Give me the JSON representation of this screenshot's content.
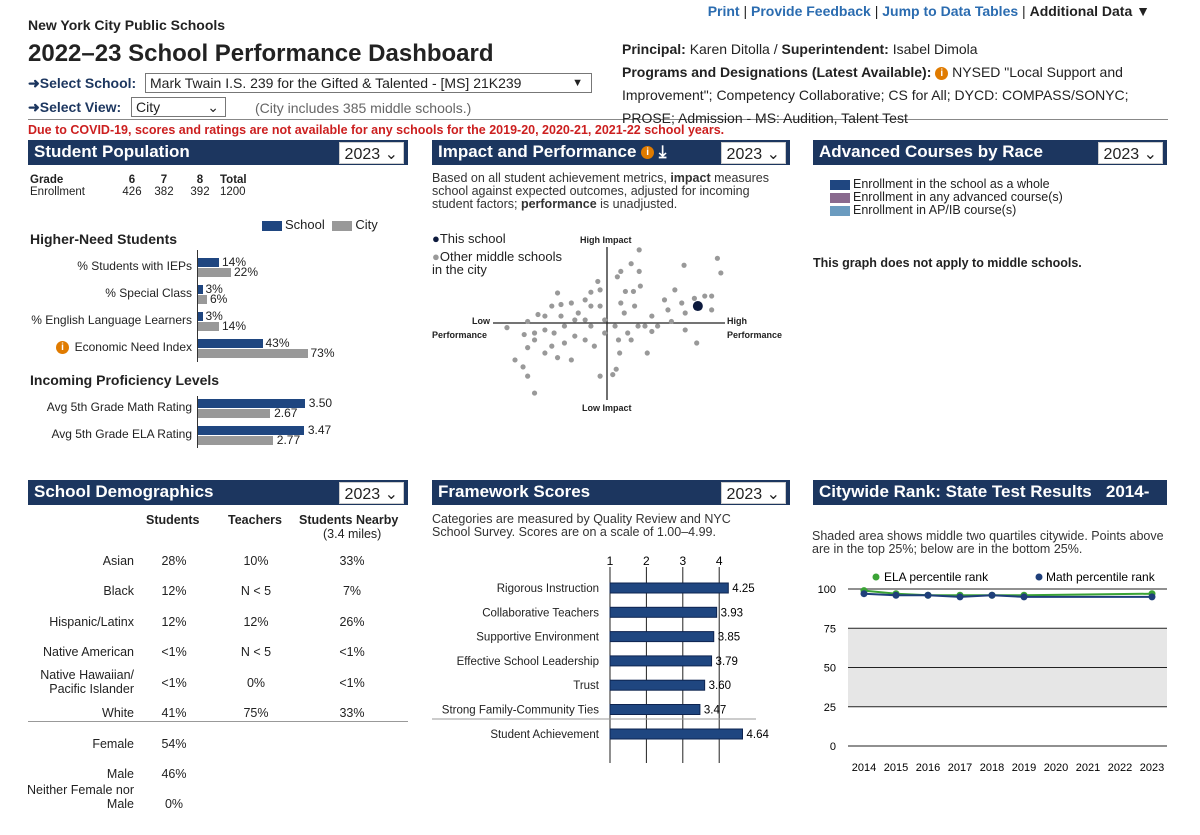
{
  "header": {
    "org": "New York City Public Schools",
    "title": "2022–23 School Performance Dashboard",
    "select_school_label": "➜Select School:",
    "school": "Mark Twain I.S. 239 for the Gifted & Talented - [MS] 21K239",
    "select_view_label": "➜Select View:",
    "view": "City",
    "view_note": "(City includes 385 middle schools.)",
    "covid_notice": "Due to COVID-19, scores and ratings are not available for any schools for the 2019-20, 2020-21, 2021-22 school years."
  },
  "toplinks": {
    "print": "Print",
    "feedback": "Provide Feedback",
    "jump": "Jump to Data Tables",
    "additional": "Additional Data ▼",
    "sep": "|"
  },
  "info": {
    "principal_label": "Principal:",
    "principal": "Karen Ditolla /",
    "superintendent_label": "Superintendent:",
    "superintendent": "Isabel Dimola",
    "programs_label": "Programs and Designations (Latest Available):",
    "programs": "NYSED \"Local Support and Improvement\"; Competency Collaborative; CS for All; DYCD: COMPASS/SONYC; PROSE; Admission - MS: Audition, Talent Test"
  },
  "colors": {
    "navy": "#1c365f",
    "school": "#1f4680",
    "city": "#999999",
    "covid": "#cc1f1f",
    "info": "#e07b00",
    "ela": "#3aa335",
    "math": "#1f3f7a"
  },
  "population": {
    "title": "Student Population",
    "year": "2023",
    "grade_header": [
      "Grade",
      "6",
      "7",
      "8",
      "Total"
    ],
    "enrollment": [
      "Enrollment",
      "426",
      "382",
      "392",
      "1200"
    ],
    "legend": {
      "school": "School",
      "city": "City"
    },
    "higher_need_title": "Higher-Need Students",
    "higher_need": [
      {
        "label": "% Students with IEPs",
        "school": 14,
        "city": 22,
        "school_text": "14%",
        "city_text": "22%"
      },
      {
        "label": "% Special Class",
        "school": 3,
        "city": 6,
        "school_text": "3%",
        "city_text": "6%"
      },
      {
        "label": "% English Language Learners",
        "school": 3,
        "city": 14,
        "school_text": "3%",
        "city_text": "14%"
      },
      {
        "label": "Economic Need Index",
        "school": 43,
        "city": 73,
        "school_text": "43%",
        "city_text": "73%"
      }
    ],
    "proficiency_title": "Incoming Proficiency Levels",
    "proficiency": [
      {
        "label": "Avg 5th Grade Math Rating",
        "school": 3.5,
        "city": 2.67,
        "school_text": "3.50",
        "city_text": "2.67"
      },
      {
        "label": "Avg 5th Grade ELA Rating",
        "school": 3.47,
        "city": 2.77,
        "school_text": "3.47",
        "city_text": "2.77"
      }
    ]
  },
  "impact": {
    "title": "Impact and Performance",
    "year": "2023",
    "desc_1": "Based on all student achievement metrics, ",
    "desc_b1": "impact",
    "desc_2": " measures school against expected outcomes, adjusted for incoming student factors; ",
    "desc_b2": "performance",
    "desc_3": " is unadjusted.",
    "legend_school": "This school",
    "legend_others": "Other middle schools in the city",
    "high_impact": "High Impact",
    "low_impact": "Low Impact",
    "low_perf_1": "Low",
    "low_perf_2": "Performance",
    "high_perf_1": "High",
    "high_perf_2": "Performance"
  },
  "advanced": {
    "title": "Advanced Courses by Race",
    "year": "2023",
    "legend": [
      {
        "label": "Enrollment in the school as a whole",
        "color": "#1f4680"
      },
      {
        "label": "Enrollment in any advanced course(s)",
        "color": "#8a6a8e"
      },
      {
        "label": "Enrollment in AP/IB course(s)",
        "color": "#6b9bbf"
      }
    ],
    "note": "This graph does not apply to middle schools."
  },
  "demographics": {
    "title": "School Demographics",
    "year": "2023",
    "headers": [
      "Students",
      "Teachers",
      "Students Nearby"
    ],
    "nearby_sub": "(3.4 miles)",
    "rows": [
      {
        "label": "Asian",
        "s": "28%",
        "t": "10%",
        "n": "33%"
      },
      {
        "label": "Black",
        "s": "12%",
        "t": "N < 5",
        "n": "7%"
      },
      {
        "label": "Hispanic/Latinx",
        "s": "12%",
        "t": "12%",
        "n": "26%"
      },
      {
        "label": "Native American",
        "s": "<1%",
        "t": "N < 5",
        "n": "<1%"
      },
      {
        "label": "Native Hawaiian/ Pacific Islander",
        "s": "<1%",
        "t": "0%",
        "n": "<1%"
      },
      {
        "label": "White",
        "s": "41%",
        "t": "75%",
        "n": "33%"
      }
    ],
    "gender": [
      {
        "label": "Female",
        "s": "54%"
      },
      {
        "label": "Male",
        "s": "46%"
      },
      {
        "label": "Neither Female nor Male",
        "s": "0%"
      }
    ]
  },
  "framework": {
    "title": "Framework Scores",
    "year": "2023",
    "desc": "Categories are measured by Quality Review and NYC School Survey. Scores are on a scale of 1.00–4.99."
  },
  "rank": {
    "title": "Citywide Rank: State Test Results",
    "title_suffix": "2014-",
    "desc": "Shaded area shows middle two quartiles citywide. Points above are in the top 25%; below are in the bottom 25%."
  },
  "chart_data": [
    {
      "type": "scatter",
      "name": "impact-performance",
      "xlabel": "Performance",
      "ylabel": "Impact",
      "xlim": [
        -1,
        1
      ],
      "ylim": [
        -1,
        1
      ],
      "this_school": [
        0.79,
        0.22
      ],
      "others": [
        [
          0.28,
          0.95
        ],
        [
          0.21,
          0.77
        ],
        [
          0.12,
          0.67
        ],
        [
          0.09,
          0.6
        ],
        [
          0.28,
          0.67
        ],
        [
          0.29,
          0.48
        ],
        [
          0.23,
          0.41
        ],
        [
          0.16,
          0.41
        ],
        [
          -0.08,
          0.54
        ],
        [
          -0.06,
          0.43
        ],
        [
          -0.14,
          0.4
        ],
        [
          -0.43,
          0.39
        ],
        [
          -0.31,
          0.26
        ],
        [
          -0.4,
          0.24
        ],
        [
          -0.48,
          0.22
        ],
        [
          -0.6,
          0.11
        ],
        [
          -0.54,
          0.09
        ],
        [
          -0.69,
          0.02
        ],
        [
          -0.87,
          -0.06
        ],
        [
          -0.72,
          -0.15
        ],
        [
          -0.63,
          -0.22
        ],
        [
          -0.69,
          -0.32
        ],
        [
          -0.54,
          -0.39
        ],
        [
          -0.43,
          -0.45
        ],
        [
          -0.31,
          -0.48
        ],
        [
          -0.8,
          -0.48
        ],
        [
          -0.73,
          -0.57
        ],
        [
          -0.69,
          -0.69
        ],
        [
          -0.63,
          -0.91
        ],
        [
          -0.06,
          -0.69
        ],
        [
          0.08,
          -0.6
        ],
        [
          0.05,
          -0.67
        ],
        [
          0.11,
          -0.39
        ],
        [
          0.35,
          -0.39
        ],
        [
          0.21,
          -0.22
        ],
        [
          0.39,
          -0.11
        ],
        [
          0.44,
          -0.04
        ],
        [
          0.56,
          0.02
        ],
        [
          0.68,
          -0.09
        ],
        [
          0.78,
          -0.26
        ],
        [
          0.68,
          0.13
        ],
        [
          0.76,
          0.32
        ],
        [
          0.85,
          0.35
        ],
        [
          0.91,
          0.35
        ],
        [
          0.91,
          0.17
        ],
        [
          0.99,
          0.65
        ],
        [
          0.96,
          0.84
        ],
        [
          0.67,
          0.75
        ],
        [
          0.59,
          0.43
        ],
        [
          0.5,
          0.3
        ],
        [
          0.53,
          0.17
        ],
        [
          0.65,
          0.26
        ],
        [
          -0.25,
          0.13
        ],
        [
          -0.19,
          0.04
        ],
        [
          -0.14,
          -0.04
        ],
        [
          -0.37,
          -0.04
        ],
        [
          -0.28,
          -0.17
        ],
        [
          -0.19,
          -0.22
        ],
        [
          -0.11,
          -0.3
        ],
        [
          -0.46,
          -0.13
        ],
        [
          -0.54,
          -0.09
        ],
        [
          -0.37,
          -0.26
        ],
        [
          -0.02,
          -0.13
        ],
        [
          0.07,
          -0.04
        ],
        [
          0.15,
          0.13
        ],
        [
          0.24,
          0.22
        ],
        [
          0.39,
          0.09
        ],
        [
          0.33,
          -0.04
        ],
        [
          0.1,
          -0.22
        ],
        [
          -0.19,
          0.3
        ],
        [
          -0.06,
          0.22
        ],
        [
          -0.14,
          0.22
        ],
        [
          -0.48,
          -0.3
        ],
        [
          -0.63,
          -0.13
        ],
        [
          -0.28,
          0.04
        ],
        [
          -0.4,
          0.09
        ],
        [
          -0.02,
          0.04
        ],
        [
          0.12,
          0.26
        ],
        [
          0.18,
          -0.13
        ],
        [
          0.27,
          -0.04
        ]
      ]
    },
    {
      "type": "bar",
      "name": "framework-scores",
      "orientation": "horizontal",
      "xlim": [
        1,
        4.99
      ],
      "ticks": [
        "1",
        "2",
        "3",
        "4"
      ],
      "categories": [
        "Rigorous Instruction",
        "Collaborative Teachers",
        "Supportive Environment",
        "Effective School Leadership",
        "Trust",
        "Strong Family-Community Ties",
        "Student Achievement"
      ],
      "values": [
        4.25,
        3.93,
        3.85,
        3.79,
        3.6,
        3.47,
        4.64
      ],
      "labels": [
        "4.25",
        "3.93",
        "3.85",
        "3.79",
        "3.60",
        "3.47",
        "4.64"
      ]
    },
    {
      "type": "line",
      "name": "citywide-rank",
      "ylim": [
        0,
        100
      ],
      "yticks": [
        "100",
        "75",
        "50",
        "25",
        "0"
      ],
      "shaded_band": [
        25,
        75
      ],
      "x": [
        "2014",
        "2015",
        "2016",
        "2017",
        "2018",
        "2019",
        "2020",
        "2021",
        "2022",
        "2023"
      ],
      "series": [
        {
          "name": "ELA percentile rank",
          "values": [
            99,
            97,
            96,
            96,
            96,
            96,
            null,
            null,
            null,
            97
          ]
        },
        {
          "name": "Math percentile rank",
          "values": [
            97,
            96,
            96,
            95,
            96,
            95,
            null,
            null,
            null,
            95
          ]
        }
      ]
    }
  ]
}
